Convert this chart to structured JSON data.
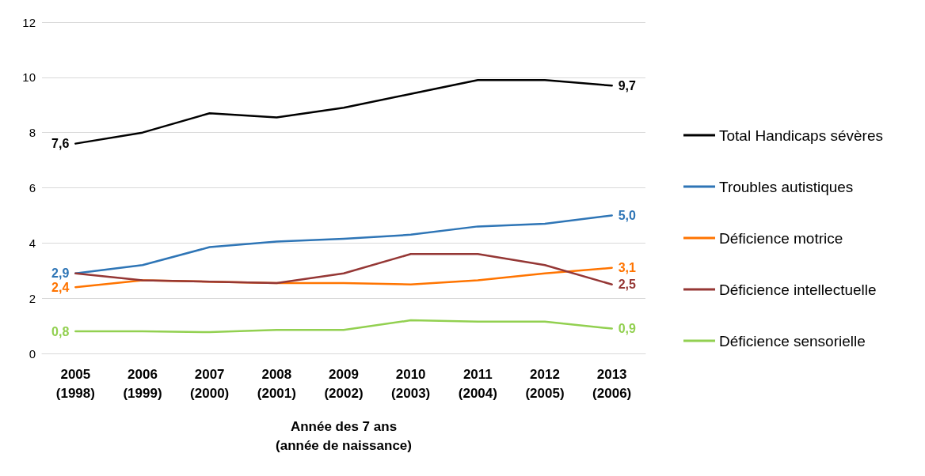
{
  "chart_data": {
    "type": "line",
    "xlabel": "Année des 7 ans\n(année de naissance)",
    "categories": [
      "2005\n(1998)",
      "2006\n(1999)",
      "2007\n(2000)",
      "2008\n(2001)",
      "2009\n(2002)",
      "2010\n(2003)",
      "2011\n(2004)",
      "2012\n(2005)",
      "2013\n(2006)"
    ],
    "ylim": [
      0,
      12
    ],
    "yticks": [
      0,
      2,
      4,
      6,
      8,
      10,
      12
    ],
    "grid": "y",
    "legend": "right",
    "marker": "none",
    "line_style": "solid",
    "series": [
      {
        "name": "Total Handicaps sévères",
        "color": "#000000",
        "values": [
          7.6,
          8.0,
          8.7,
          8.55,
          8.9,
          9.4,
          9.9,
          9.9,
          9.7
        ],
        "value_labels": [
          "7,6",
          null,
          null,
          null,
          null,
          null,
          null,
          null,
          "9,7"
        ]
      },
      {
        "name": "Troubles autistiques",
        "color": "#2e75b6",
        "values": [
          2.9,
          3.2,
          3.85,
          4.05,
          4.15,
          4.3,
          4.6,
          4.7,
          5.0
        ],
        "value_labels": [
          "2,9",
          null,
          null,
          null,
          null,
          null,
          null,
          null,
          "5,0"
        ]
      },
      {
        "name": "Déficience motrice",
        "color": "#ff7400",
        "values": [
          2.4,
          2.65,
          2.6,
          2.55,
          2.55,
          2.5,
          2.65,
          2.9,
          3.1
        ],
        "value_labels": [
          "2,4",
          null,
          null,
          null,
          null,
          null,
          null,
          null,
          "3,1"
        ]
      },
      {
        "name": "Déficience intellectuelle",
        "color": "#953735",
        "values": [
          2.9,
          2.65,
          2.6,
          2.55,
          2.9,
          3.6,
          3.6,
          3.2,
          2.5
        ],
        "value_labels": [
          null,
          null,
          null,
          null,
          null,
          null,
          null,
          null,
          "2,5"
        ]
      },
      {
        "name": "Déficience sensorielle",
        "color": "#92d050",
        "values": [
          0.8,
          0.8,
          0.77,
          0.85,
          0.85,
          1.2,
          1.15,
          1.15,
          0.9
        ],
        "value_labels": [
          "0,8",
          null,
          null,
          null,
          null,
          null,
          null,
          null,
          "0,9"
        ]
      }
    ]
  }
}
